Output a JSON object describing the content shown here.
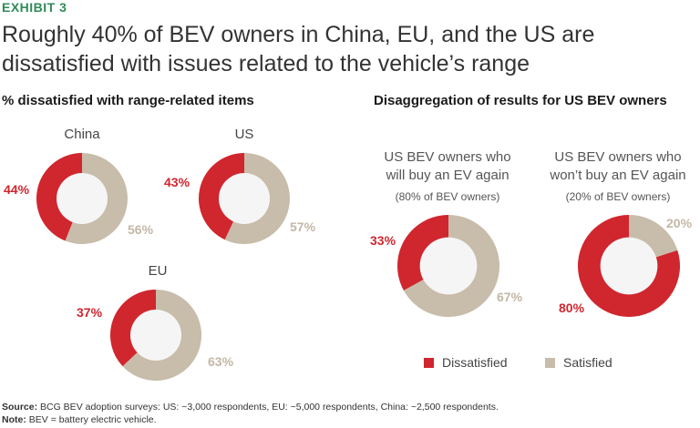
{
  "exhibit": "EXHIBIT 3",
  "title_line1": "Roughly 40% of BEV owners in China, EU, and the US are",
  "title_line2": "dissatisfied with issues related to the vehicle’s range",
  "left_heading": "% dissatisfied with range-related items",
  "right_heading": "Disaggregation of results for US BEV owners",
  "colors": {
    "dissatisfied": "#d0262e",
    "satisfied": "#c8bcaa",
    "hole": "#f5f5f5"
  },
  "chart_data": [
    {
      "type": "pie",
      "variant": "donut",
      "title": "China",
      "categories": [
        "Dissatisfied",
        "Satisfied"
      ],
      "values": [
        44,
        56
      ],
      "labels": [
        "44%",
        "56%"
      ]
    },
    {
      "type": "pie",
      "variant": "donut",
      "title": "US",
      "categories": [
        "Dissatisfied",
        "Satisfied"
      ],
      "values": [
        43,
        57
      ],
      "labels": [
        "43%",
        "57%"
      ]
    },
    {
      "type": "pie",
      "variant": "donut",
      "title": "EU",
      "categories": [
        "Dissatisfied",
        "Satisfied"
      ],
      "values": [
        37,
        63
      ],
      "labels": [
        "37%",
        "63%"
      ]
    },
    {
      "type": "pie",
      "variant": "donut",
      "title_line1": "US BEV owners who",
      "title_line2": "will buy an EV again",
      "subtitle": "(80% of BEV owners)",
      "categories": [
        "Dissatisfied",
        "Satisfied"
      ],
      "values": [
        33,
        67
      ],
      "labels": [
        "33%",
        "67%"
      ]
    },
    {
      "type": "pie",
      "variant": "donut",
      "title_line1": "US BEV owners who",
      "title_line2": "won’t buy an EV again",
      "subtitle": "(20% of BEV owners)",
      "categories": [
        "Dissatisfied",
        "Satisfied"
      ],
      "values": [
        80,
        20
      ],
      "labels": [
        "80%",
        "20%"
      ]
    }
  ],
  "legend": {
    "dissatisfied": "Dissatisfied",
    "satisfied": "Satisfied"
  },
  "footer": {
    "source_label": "Source:",
    "source_text": " BCG BEV adoption surveys: US: ~3,000 respondents, EU: ~5,000 respondents, China: ~2,500 respondents.",
    "note_label": "Note:",
    "note_text": " BEV = battery electric vehicle."
  }
}
